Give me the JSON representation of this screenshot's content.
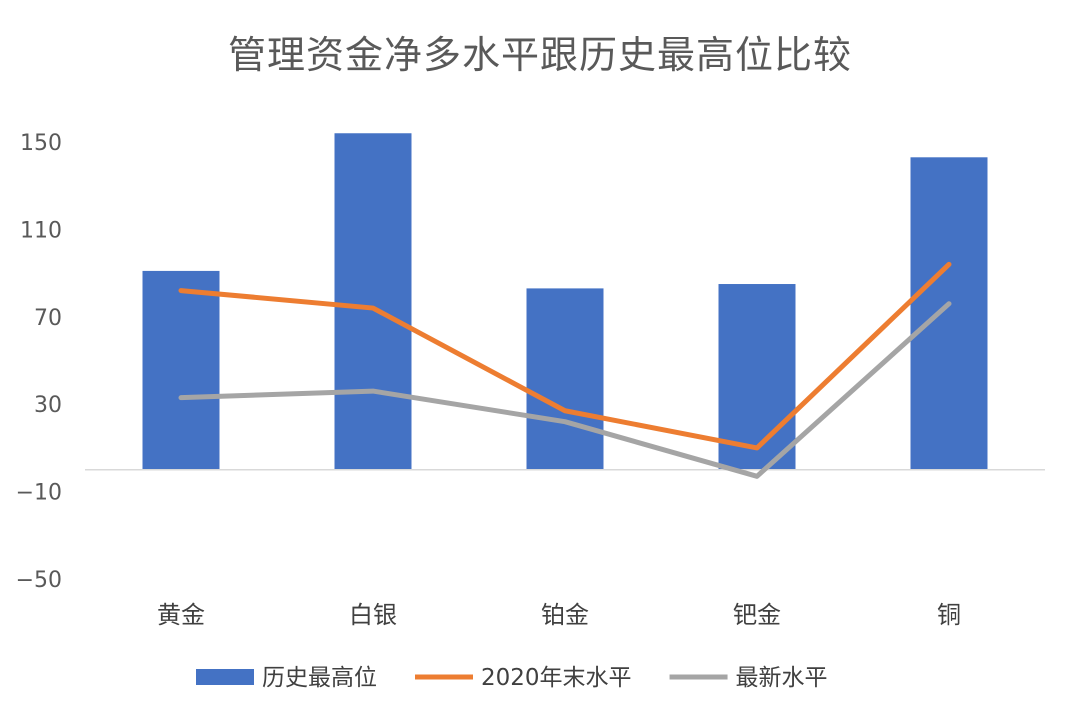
{
  "chart_data": {
    "type": "bar+line",
    "title": "管理资金净多水平跟历史最高位比较",
    "categories": [
      "黄金",
      "白银",
      "铂金",
      "钯金",
      "铜"
    ],
    "yticks": [
      150,
      110,
      70,
      30,
      -10,
      -50
    ],
    "ylim": [
      -50,
      150
    ],
    "grid": false,
    "legend_position": "bottom",
    "series": [
      {
        "name": "历史最高位",
        "type": "bar",
        "color": "#4472C4",
        "values": [
          91,
          154,
          83,
          85,
          143
        ]
      },
      {
        "name": "2020年末水平",
        "type": "line",
        "color": "#ED7D31",
        "values": [
          82,
          74,
          27,
          10,
          94
        ]
      },
      {
        "name": "最新水平",
        "type": "line",
        "color": "#A5A5A5",
        "values": [
          33,
          36,
          22,
          -3,
          76
        ]
      }
    ]
  }
}
